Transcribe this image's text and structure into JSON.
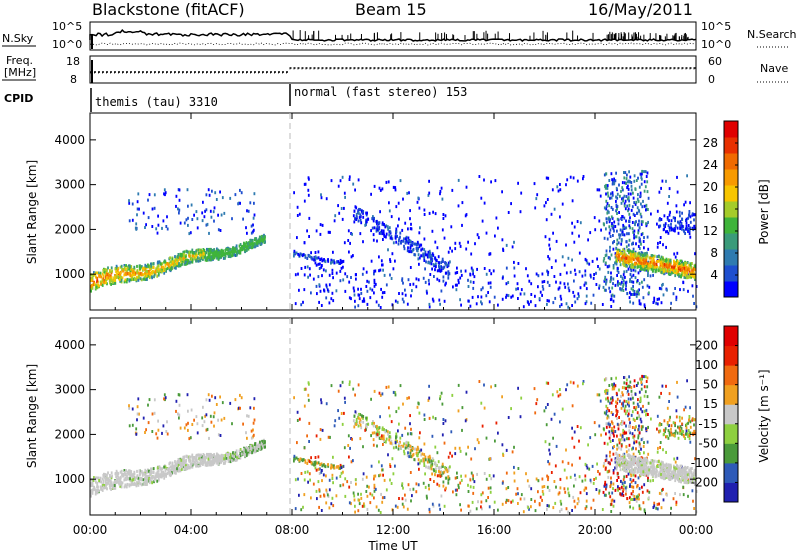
{
  "header": {
    "station": "Blackstone (fitACF)",
    "beam": "Beam 15",
    "date": "16/May/2011"
  },
  "top_panels": {
    "nsky_label": "N.Sky",
    "nsky_ticks": [
      "10^5",
      "10^0"
    ],
    "nsearch_label": "N.Search",
    "nsearch_ticks": [
      "10^5",
      "10^0"
    ],
    "freq_label_1": "Freq.",
    "freq_label_2": "[MHz]",
    "freq_ticks": [
      "18",
      "8"
    ],
    "nave_label": "Nave",
    "nave_ticks": [
      "60",
      "0"
    ],
    "cpid_label": "CPID",
    "cpid_segments": [
      "themis (tau) 3310",
      "normal (fast stereo) 153"
    ]
  },
  "power_panel": {
    "ylabel": "Slant Range [km]",
    "yticks": [
      "1000",
      "2000",
      "3000",
      "4000"
    ],
    "colorbar_label": "Power [dB]",
    "colorbar_ticks": [
      "4",
      "8",
      "12",
      "16",
      "20",
      "24",
      "28"
    ],
    "colors": [
      "#0000ff",
      "#1e4fcf",
      "#2f7bb0",
      "#3a9b7a",
      "#3fb43a",
      "#a5cc2a",
      "#f7c500",
      "#f79a00",
      "#f06a00",
      "#e83000",
      "#e00000"
    ]
  },
  "velocity_panel": {
    "ylabel": "Slant Range [km]",
    "yticks": [
      "1000",
      "2000",
      "3000",
      "4000"
    ],
    "colorbar_label": "Velocity [m s⁻¹]",
    "colorbar_ticks": [
      "200",
      "100",
      "50",
      "15",
      "-15",
      "-50",
      "-100",
      "-200"
    ],
    "colors": [
      "#2020b0",
      "#2e5ab8",
      "#4a9a3a",
      "#8ed040",
      "#c8c8c8",
      "#f0a020",
      "#f06a10",
      "#e82000",
      "#e00000"
    ]
  },
  "time_axis": {
    "xlabel": "Time UT",
    "ticks": [
      "00:00",
      "04:00",
      "08:00",
      "12:00",
      "16:00",
      "20:00",
      "00:00"
    ]
  },
  "chart_data": [
    {
      "type": "heatmap",
      "title": "Power",
      "xlabel": "Time UT",
      "ylabel": "Slant Range [km]",
      "xlim": [
        0,
        24
      ],
      "ylim": [
        200,
        4600
      ],
      "zlabel": "Power [dB]",
      "zlim": [
        0,
        32
      ],
      "mode_change_hour": 7.9,
      "features": [
        {
          "name": "ionospheric band 0-7 UT",
          "start_hour": 0,
          "end_hour": 7.0,
          "start_range": 800,
          "end_range": 1700,
          "peak_db": 28
        },
        {
          "name": "late band 20.5-24 UT",
          "start_hour": 20.5,
          "end_hour": 24,
          "start_range": 1400,
          "end_range": 1000,
          "peak_db": 24
        }
      ]
    },
    {
      "type": "heatmap",
      "title": "Velocity",
      "xlabel": "Time UT",
      "ylabel": "Slant Range [km]",
      "xlim": [
        0,
        24
      ],
      "ylim": [
        200,
        4600
      ],
      "zlabel": "Velocity [m s-1]",
      "zlim": [
        -250,
        250
      ],
      "mode_change_hour": 7.9
    }
  ]
}
